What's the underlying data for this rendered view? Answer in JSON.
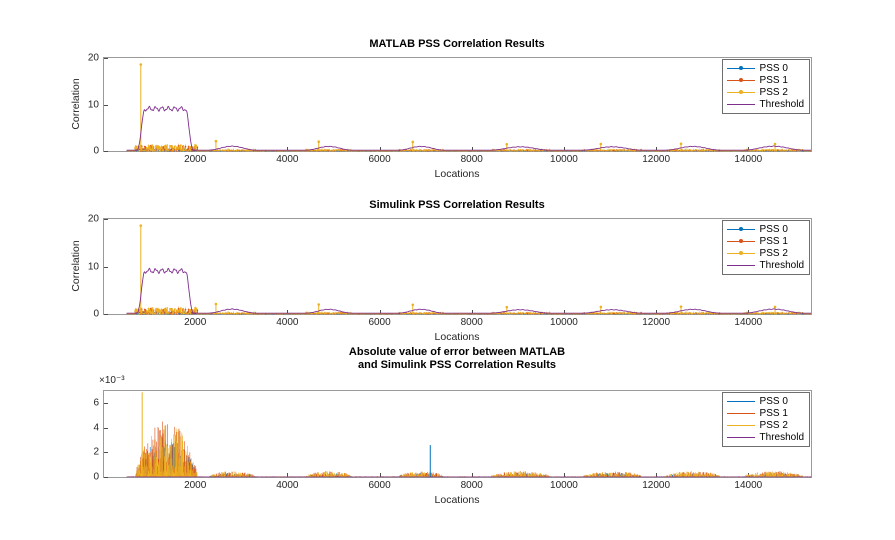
{
  "figure": {
    "background": "#ffffff"
  },
  "palette": {
    "pss0": "#0072BD",
    "pss1": "#D95319",
    "pss2": "#EDB120",
    "threshold": "#7E2F8E"
  },
  "chart_data": [
    {
      "id": "matlab",
      "type": "line",
      "title": "MATLAB PSS Correlation Results",
      "xlabel": "Locations",
      "ylabel": "Correlation",
      "xlim": [
        0,
        15360
      ],
      "ylim": [
        0,
        20
      ],
      "x_start": 512,
      "xticks": [
        2000,
        4000,
        6000,
        8000,
        10000,
        12000,
        14000
      ],
      "yticks": [
        0,
        10,
        20
      ],
      "grid": false,
      "legend_position": "northeast",
      "legend": [
        {
          "label": "PSS 0",
          "color": "#0072BD",
          "marker": true
        },
        {
          "label": "PSS 1",
          "color": "#D95319",
          "marker": true
        },
        {
          "label": "PSS 2",
          "color": "#EDB120",
          "marker": true
        },
        {
          "label": "Threshold",
          "color": "#7E2F8E",
          "marker": false
        }
      ],
      "seed": 7,
      "threshold_curve": {
        "base": 0.18,
        "main_plateau": {
          "start": 740,
          "end": 1960,
          "flat_start": 920,
          "flat_end": 1780,
          "height": 8.9
        },
        "bumps": [
          [
            2800,
            520,
            0.85
          ],
          [
            4900,
            500,
            0.8
          ],
          [
            6900,
            500,
            0.8
          ],
          [
            9050,
            650,
            0.72
          ],
          [
            11050,
            650,
            0.72
          ],
          [
            12800,
            600,
            0.8
          ],
          [
            14550,
            650,
            0.85
          ]
        ]
      },
      "pss2_spikes": [
        [
          820,
          18.6
        ],
        [
          2450,
          2.1
        ],
        [
          4680,
          2.0
        ],
        [
          6720,
          1.95
        ],
        [
          8760,
          1.45
        ],
        [
          10800,
          1.5
        ],
        [
          12540,
          1.55
        ],
        [
          14580,
          1.5
        ]
      ],
      "noise": {
        "floor": 0.12,
        "main_region": [
          700,
          2050
        ],
        "bump_amp": 0.3,
        "series_mult": {
          "pss0": 0.6,
          "pss1": 1.1,
          "pss2": 1.35
        }
      }
    },
    {
      "id": "simulink",
      "type": "line",
      "title": "Simulink PSS Correlation Results",
      "xlabel": "Locations",
      "ylabel": "Correlation",
      "xlim": [
        0,
        15360
      ],
      "ylim": [
        0,
        20
      ],
      "x_start": 512,
      "xticks": [
        2000,
        4000,
        6000,
        8000,
        10000,
        12000,
        14000
      ],
      "yticks": [
        0,
        10,
        20
      ],
      "grid": false,
      "legend_position": "northeast",
      "legend": [
        {
          "label": "PSS 0",
          "color": "#0072BD",
          "marker": true
        },
        {
          "label": "PSS 1",
          "color": "#D95319",
          "marker": true
        },
        {
          "label": "PSS 2",
          "color": "#EDB120",
          "marker": true
        },
        {
          "label": "Threshold",
          "color": "#7E2F8E",
          "marker": false
        }
      ],
      "seed": 7,
      "threshold_curve": {
        "base": 0.18,
        "main_plateau": {
          "start": 740,
          "end": 1960,
          "flat_start": 920,
          "flat_end": 1780,
          "height": 8.9
        },
        "bumps": [
          [
            2800,
            520,
            0.85
          ],
          [
            4900,
            500,
            0.8
          ],
          [
            6900,
            500,
            0.8
          ],
          [
            9050,
            650,
            0.72
          ],
          [
            11050,
            650,
            0.72
          ],
          [
            12800,
            600,
            0.8
          ],
          [
            14550,
            650,
            0.85
          ]
        ]
      },
      "pss2_spikes": [
        [
          820,
          18.6
        ],
        [
          2450,
          2.1
        ],
        [
          4680,
          2.0
        ],
        [
          6720,
          1.95
        ],
        [
          8760,
          1.45
        ],
        [
          10800,
          1.5
        ],
        [
          12540,
          1.55
        ],
        [
          14580,
          1.5
        ]
      ],
      "noise": {
        "floor": 0.12,
        "main_region": [
          700,
          2050
        ],
        "bump_amp": 0.3,
        "series_mult": {
          "pss0": 0.6,
          "pss1": 1.1,
          "pss2": 1.35
        }
      }
    },
    {
      "id": "error",
      "type": "line",
      "title_line1": "Absolute value of error between MATLAB",
      "title_line2": "and Simulink PSS Correlation Results",
      "xlabel": "Locations",
      "y_multiplier": "×10⁻³",
      "xlim": [
        0,
        15360
      ],
      "ylim": [
        0,
        7
      ],
      "y_scale": 0.001,
      "x_start": 512,
      "xticks": [
        2000,
        4000,
        6000,
        8000,
        10000,
        12000,
        14000
      ],
      "yticks": [
        0,
        2,
        4,
        6
      ],
      "grid": false,
      "legend_position": "northeast",
      "legend": [
        {
          "label": "PSS 0",
          "color": "#0072BD",
          "marker": false
        },
        {
          "label": "PSS 1",
          "color": "#D95319",
          "marker": false
        },
        {
          "label": "PSS 2",
          "color": "#EDB120",
          "marker": false
        },
        {
          "label": "Threshold",
          "color": "#7E2F8E",
          "marker": false
        }
      ],
      "seed": 99,
      "main_burst": {
        "start": 700,
        "end": 2050,
        "peak": 4.6
      },
      "minor_bursts": [
        [
          2300,
          3300
        ],
        [
          4400,
          5400
        ],
        [
          6400,
          7400
        ],
        [
          8400,
          9700
        ],
        [
          10400,
          11700
        ],
        [
          12200,
          13400
        ],
        [
          13900,
          15200
        ]
      ],
      "minor_amp": 0.48,
      "floor": 0.06,
      "spikes": [
        {
          "x": 850,
          "h": 6.9,
          "series": "pss2"
        },
        {
          "x": 7100,
          "h": 2.6,
          "series": "pss0"
        }
      ],
      "series_mult": {
        "pss0": 0.7,
        "pss1": 1.0,
        "pss2": 1.0
      }
    }
  ]
}
